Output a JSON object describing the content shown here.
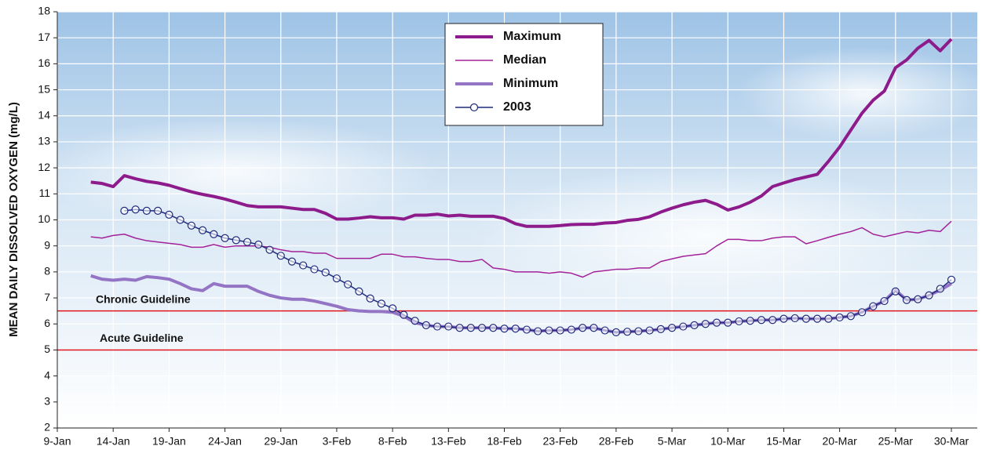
{
  "chart_data": {
    "type": "line",
    "y_label": "MEAN DAILY DISSOLVED OXYGEN (mg/L)",
    "categories": [
      "9-Jan",
      null,
      null,
      null,
      null,
      "14-Jan",
      null,
      null,
      null,
      null,
      "19-Jan",
      null,
      null,
      null,
      null,
      "24-Jan",
      null,
      null,
      null,
      null,
      "29-Jan",
      null,
      null,
      null,
      null,
      "3-Feb",
      null,
      null,
      null,
      null,
      "8-Feb",
      null,
      null,
      null,
      null,
      "13-Feb",
      null,
      null,
      null,
      null,
      "18-Feb",
      null,
      null,
      null,
      null,
      "23-Feb",
      null,
      null,
      null,
      null,
      "28-Feb",
      null,
      null,
      null,
      null,
      "5-Mar",
      null,
      null,
      null,
      null,
      "10-Mar",
      null,
      null,
      null,
      null,
      "15-Mar",
      null,
      null,
      null,
      null,
      "20-Mar",
      null,
      null,
      null,
      null,
      "25-Mar",
      null,
      null,
      null,
      null,
      "30-Mar"
    ],
    "series": [
      {
        "name": "Maximum",
        "color": "#8e1b8c",
        "width": 4,
        "values": [
          null,
          null,
          null,
          11.45,
          11.4,
          11.28,
          11.7,
          11.58,
          11.48,
          11.42,
          11.33,
          11.2,
          11.08,
          10.98,
          10.9,
          10.8,
          10.68,
          10.55,
          10.5,
          10.5,
          10.5,
          10.45,
          10.4,
          10.4,
          10.25,
          10.03,
          10.03,
          10.07,
          10.12,
          10.08,
          10.08,
          10.03,
          10.18,
          10.18,
          10.22,
          10.15,
          10.18,
          10.14,
          10.14,
          10.14,
          10.05,
          9.85,
          9.75,
          9.75,
          9.75,
          9.78,
          9.82,
          9.83,
          9.83,
          9.88,
          9.9,
          9.98,
          10.02,
          10.12,
          10.3,
          10.45,
          10.58,
          10.68,
          10.75,
          10.6,
          10.38,
          10.5,
          10.68,
          10.92,
          11.28,
          11.42,
          11.55,
          11.65,
          11.75,
          12.25,
          12.8,
          13.45,
          14.1,
          14.6,
          14.95,
          15.85,
          16.15,
          16.6,
          16.9,
          16.5,
          16.95
        ]
      },
      {
        "name": "Median",
        "color": "#a3229a",
        "width": 1.5,
        "values": [
          null,
          null,
          null,
          9.35,
          9.3,
          9.4,
          9.45,
          9.3,
          9.2,
          9.15,
          9.1,
          9.05,
          8.95,
          8.95,
          9.05,
          8.95,
          9.0,
          9.0,
          9.0,
          8.95,
          8.85,
          8.78,
          8.78,
          8.72,
          8.72,
          8.52,
          8.52,
          8.52,
          8.52,
          8.68,
          8.68,
          8.58,
          8.58,
          8.52,
          8.48,
          8.48,
          8.4,
          8.4,
          8.48,
          8.15,
          8.1,
          8.0,
          8.0,
          8.0,
          7.95,
          8.0,
          7.95,
          7.8,
          8.0,
          8.05,
          8.1,
          8.1,
          8.15,
          8.15,
          8.4,
          8.5,
          8.6,
          8.65,
          8.7,
          9.0,
          9.25,
          9.25,
          9.2,
          9.2,
          9.3,
          9.35,
          9.35,
          9.08,
          9.2,
          9.33,
          9.45,
          9.55,
          9.7,
          9.45,
          9.35,
          9.45,
          9.55,
          9.5,
          9.6,
          9.55,
          9.95
        ]
      },
      {
        "name": "Minimum",
        "color": "#9474c4",
        "width": 4,
        "values": [
          null,
          null,
          null,
          7.85,
          7.72,
          7.68,
          7.72,
          7.68,
          7.82,
          7.78,
          7.72,
          7.55,
          7.35,
          7.28,
          7.55,
          7.45,
          7.45,
          7.45,
          7.25,
          7.1,
          7.0,
          6.95,
          6.95,
          6.88,
          6.78,
          6.68,
          6.55,
          6.5,
          6.48,
          6.48,
          6.45,
          6.3,
          6.05,
          5.95,
          5.9,
          5.9,
          5.85,
          5.85,
          5.85,
          5.85,
          5.82,
          5.82,
          5.78,
          5.72,
          5.75,
          5.75,
          5.78,
          5.85,
          5.85,
          5.75,
          5.68,
          5.7,
          5.72,
          5.75,
          5.8,
          5.85,
          5.9,
          5.95,
          6.0,
          6.05,
          6.05,
          6.1,
          6.12,
          6.15,
          6.15,
          6.2,
          6.22,
          6.2,
          6.2,
          6.2,
          6.25,
          6.3,
          6.45,
          6.68,
          6.88,
          7.3,
          6.92,
          6.95,
          7.1,
          7.3,
          7.55
        ]
      },
      {
        "name": "2003",
        "color": "#1f2a7c",
        "width": 1.5,
        "marker": "circle",
        "values": [
          null,
          null,
          null,
          null,
          null,
          null,
          10.35,
          10.4,
          10.35,
          10.35,
          10.2,
          10.0,
          9.78,
          9.6,
          9.45,
          9.3,
          9.22,
          9.15,
          9.05,
          8.85,
          8.62,
          8.4,
          8.25,
          8.1,
          7.98,
          7.75,
          7.52,
          7.25,
          6.98,
          6.78,
          6.6,
          6.35,
          6.12,
          5.95,
          5.9,
          5.9,
          5.85,
          5.85,
          5.85,
          5.85,
          5.82,
          5.82,
          5.78,
          5.72,
          5.75,
          5.75,
          5.78,
          5.85,
          5.85,
          5.75,
          5.68,
          5.7,
          5.72,
          5.75,
          5.8,
          5.85,
          5.9,
          5.95,
          6.0,
          6.05,
          6.05,
          6.1,
          6.12,
          6.15,
          6.15,
          6.2,
          6.22,
          6.2,
          6.2,
          6.2,
          6.25,
          6.3,
          6.45,
          6.68,
          6.88,
          7.25,
          6.92,
          6.95,
          7.1,
          7.35,
          7.7
        ]
      }
    ],
    "reference_lines": [
      {
        "label": "Chronic Guideline",
        "value": 6.5,
        "color": "#e0171f"
      },
      {
        "label": "Acute Guideline",
        "value": 5,
        "color": "#e0171f"
      }
    ],
    "ylim": [
      2,
      18
    ],
    "yticks": [
      2,
      3,
      4,
      5,
      6,
      7,
      8,
      9,
      10,
      11,
      12,
      13,
      14,
      15,
      16,
      17,
      18
    ],
    "grid": true,
    "legend": "top"
  }
}
